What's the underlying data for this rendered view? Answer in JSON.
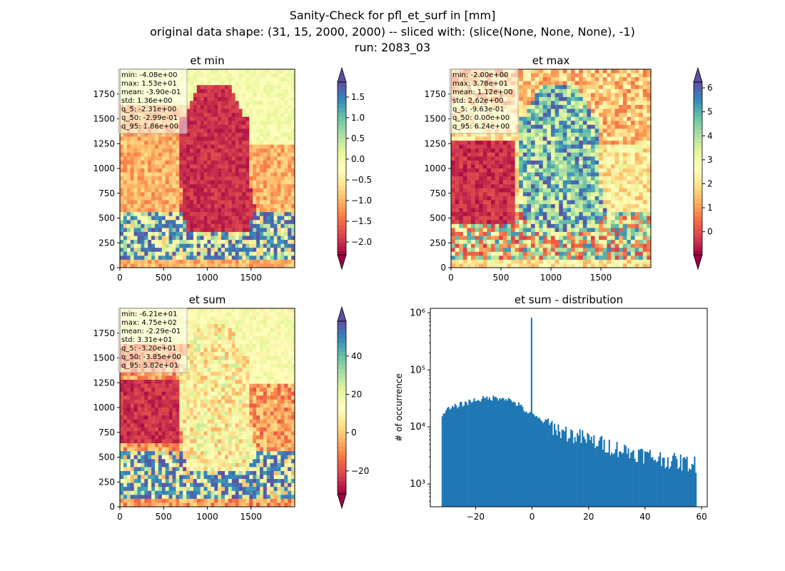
{
  "figure": {
    "title_lines": [
      "Sanity-Check for pfl_et_surf in [mm]",
      "original data shape: (31, 15, 2000, 2000) -- sliced with: (slice(None, None, None), -1)",
      "run: 2083_03"
    ]
  },
  "chart_data": [
    {
      "type": "heatmap",
      "title": "et min",
      "xlim": [
        0,
        2000
      ],
      "ylim": [
        0,
        2000
      ],
      "xticks": [
        0,
        500,
        1000,
        1500
      ],
      "yticks": [
        0,
        250,
        500,
        750,
        1000,
        1250,
        1500,
        1750
      ],
      "colormap": "Spectral",
      "colorbar": {
        "range": [
          -2.31,
          1.86
        ],
        "ticks": [
          -2.0,
          -1.5,
          -1.0,
          -0.5,
          0.0,
          0.5,
          1.0,
          1.5
        ],
        "tick_labels": [
          "−2.0",
          "−1.5",
          "−1.0",
          "−0.5",
          "0.0",
          "0.5",
          "1.0",
          "1.5"
        ],
        "extend": "both"
      },
      "stats": [
        "min: -4.08e+00",
        "max: 1.53e+01",
        "mean: -3.90e-01",
        "std: 1.36e+00",
        "q_5: -2.31e+00",
        "q_50: -2.99e-01",
        "q_95: 1.86e+00"
      ]
    },
    {
      "type": "heatmap",
      "title": "et max",
      "xlim": [
        0,
        2000
      ],
      "ylim": [
        0,
        2000
      ],
      "xticks": [
        0,
        500,
        1000,
        1500
      ],
      "yticks": [
        0,
        250,
        500,
        750,
        1000,
        1250,
        1500,
        1750
      ],
      "colormap": "Spectral",
      "colorbar": {
        "range": [
          -0.963,
          6.24
        ],
        "ticks": [
          0,
          1,
          2,
          3,
          4,
          5,
          6
        ],
        "tick_labels": [
          "0",
          "1",
          "2",
          "3",
          "4",
          "5",
          "6"
        ],
        "extend": "both"
      },
      "stats": [
        "min: -2.00e+00",
        "max: 3.78e+01",
        "mean: 1.12e+00",
        "std: 2.62e+00",
        "q_5: -9.63e-01",
        "q_50: 0.00e+00",
        "q_95: 6.24e+00"
      ]
    },
    {
      "type": "heatmap",
      "title": "et sum",
      "xlim": [
        0,
        2000
      ],
      "ylim": [
        0,
        2000
      ],
      "xticks": [
        0,
        500,
        1000,
        1500
      ],
      "yticks": [
        0,
        250,
        500,
        750,
        1000,
        1250,
        1500,
        1750
      ],
      "colormap": "Spectral",
      "colorbar": {
        "range": [
          -32.0,
          58.2
        ],
        "ticks": [
          -20,
          0,
          20,
          40
        ],
        "tick_labels": [
          "−20",
          "0",
          "20",
          "40"
        ],
        "extend": "both"
      },
      "stats": [
        "min: -6.21e+01",
        "max: 4.75e+02",
        "mean: -2.29e-01",
        "std: 3.31e+01",
        "q_5: -3.20e+01",
        "q_50: -3.85e+00",
        "q_95: 5.82e+01"
      ]
    },
    {
      "type": "bar",
      "title": "et sum - distribution",
      "ylabel": "# of occurrence",
      "yscale": "log",
      "xlim": [
        -36,
        62
      ],
      "ylim": [
        400,
        1200000
      ],
      "xticks": [
        -20,
        0,
        20,
        40,
        60
      ],
      "xtick_labels": [
        "−20",
        "0",
        "20",
        "40",
        "60"
      ],
      "yticks": [
        1000,
        10000,
        100000,
        1000000
      ],
      "ytick_labels": [
        "10³",
        "10⁴",
        "10⁵",
        "10⁶"
      ],
      "bin_range": [
        -32.0,
        58.2
      ],
      "color": "#1f77b4",
      "anchors": [
        [
          -32,
          17000
        ],
        [
          -30,
          20000
        ],
        [
          -25,
          25000
        ],
        [
          -20,
          30000
        ],
        [
          -15,
          32000
        ],
        [
          -10,
          33000
        ],
        [
          -5,
          25000
        ],
        [
          -1,
          17000
        ],
        [
          0,
          16000
        ],
        [
          5,
          12000
        ],
        [
          10,
          8500
        ],
        [
          15,
          7000
        ],
        [
          20,
          6000
        ],
        [
          25,
          5000
        ],
        [
          30,
          4200
        ],
        [
          35,
          3600
        ],
        [
          40,
          3200
        ],
        [
          45,
          2800
        ],
        [
          50,
          2500
        ],
        [
          55,
          2300
        ],
        [
          58,
          2200
        ]
      ],
      "spike": {
        "x": -0.2,
        "value": 820000
      }
    }
  ]
}
